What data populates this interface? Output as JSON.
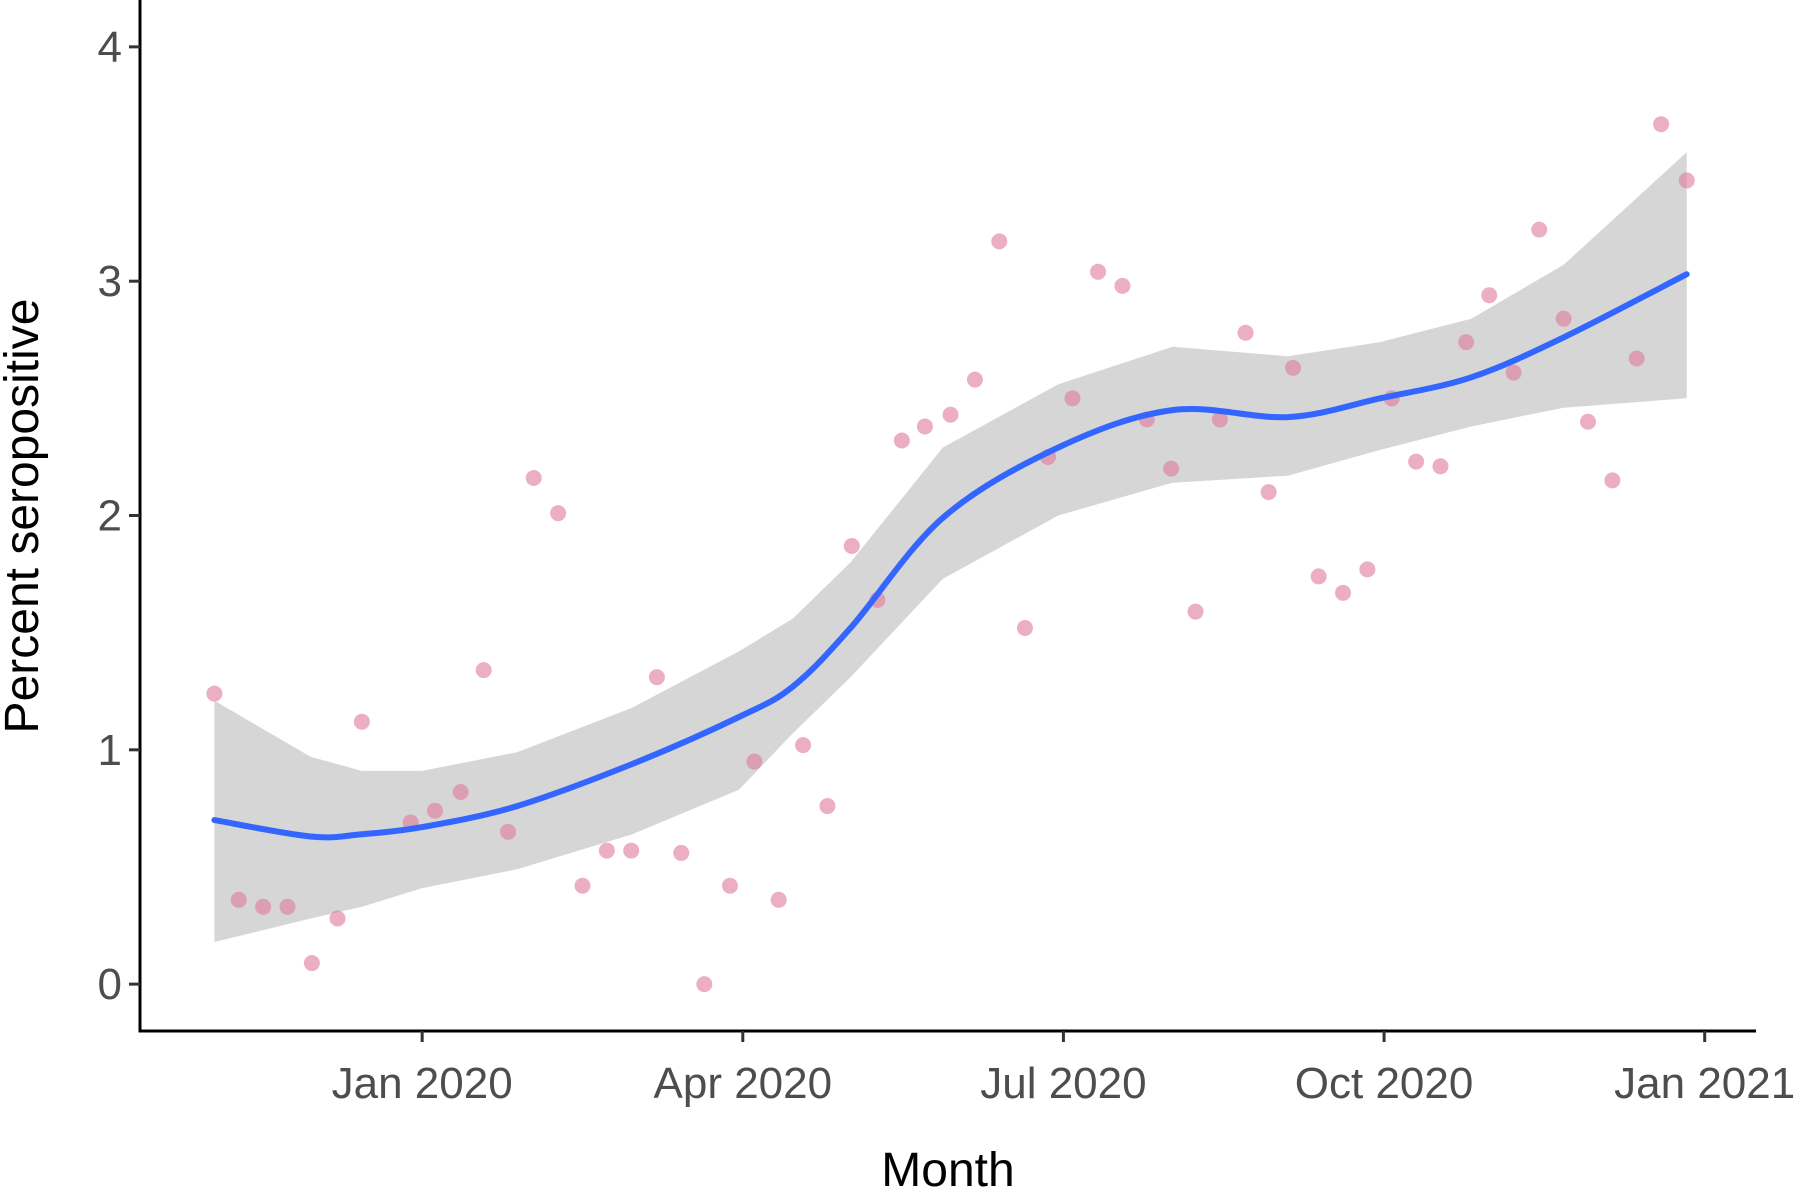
{
  "chart_data": {
    "type": "scatter",
    "x_label": "Month",
    "y_label": "Percent seropositive",
    "x": [
      2019.838,
      2019.857,
      2019.876,
      2019.895,
      2019.914,
      2019.934,
      2019.953,
      2019.991,
      2020.01,
      2020.03,
      2020.048,
      2020.067,
      2020.087,
      2020.106,
      2020.125,
      2020.144,
      2020.163,
      2020.183,
      2020.202,
      2020.22,
      2020.24,
      2020.259,
      2020.278,
      2020.297,
      2020.316,
      2020.335,
      2020.355,
      2020.374,
      2020.392,
      2020.412,
      2020.431,
      2020.45,
      2020.47,
      2020.488,
      2020.507,
      2020.527,
      2020.546,
      2020.565,
      2020.584,
      2020.603,
      2020.622,
      2020.642,
      2020.66,
      2020.679,
      2020.699,
      2020.718,
      2020.737,
      2020.756,
      2020.775,
      2020.794,
      2020.814,
      2020.832,
      2020.851,
      2020.871,
      2020.89,
      2020.909,
      2020.928,
      2020.947,
      2020.966,
      2020.986
    ],
    "values": [
      1.24,
      0.36,
      0.33,
      0.33,
      0.09,
      0.28,
      1.12,
      0.69,
      0.74,
      0.82,
      1.34,
      0.65,
      2.16,
      2.01,
      0.42,
      0.57,
      0.57,
      1.31,
      0.56,
      0.0,
      0.42,
      0.95,
      0.36,
      1.02,
      0.76,
      1.87,
      1.64,
      2.32,
      2.38,
      2.43,
      2.58,
      3.17,
      1.52,
      2.25,
      2.5,
      3.04,
      2.98,
      2.41,
      2.2,
      1.59,
      2.41,
      2.78,
      2.1,
      2.63,
      1.74,
      1.67,
      1.77,
      2.5,
      2.23,
      2.21,
      2.74,
      2.94,
      2.61,
      3.22,
      2.84,
      2.4,
      2.15,
      2.67,
      3.67,
      3.43
    ],
    "color": "#e07a9a",
    "smooth": {
      "x": [
        2019.838,
        2019.913,
        2019.953,
        2020.0,
        2020.074,
        2020.164,
        2020.247,
        2020.289,
        2020.334,
        2020.406,
        2020.496,
        2020.585,
        2020.675,
        2020.747,
        2020.818,
        2020.89,
        2020.986
      ],
      "values": [
        0.7,
        0.63,
        0.64,
        0.67,
        0.76,
        0.94,
        1.14,
        1.27,
        1.52,
        1.99,
        2.29,
        2.45,
        2.42,
        2.5,
        2.59,
        2.76,
        3.03
      ],
      "lower": [
        0.18,
        0.28,
        0.33,
        0.41,
        0.49,
        0.64,
        0.83,
        1.07,
        1.31,
        1.73,
        2.0,
        2.14,
        2.17,
        2.28,
        2.38,
        2.46,
        2.5
      ],
      "upper": [
        1.21,
        0.97,
        0.91,
        0.91,
        0.99,
        1.18,
        1.42,
        1.56,
        1.8,
        2.29,
        2.56,
        2.72,
        2.68,
        2.74,
        2.84,
        3.07,
        3.55
      ],
      "color": "#3366ff",
      "band_color": "#d6d6d6"
    },
    "xlim": [
      2019.78,
      2021.04
    ],
    "xticks": [
      {
        "value": 2020.0,
        "label": "Jan 2020"
      },
      {
        "value": 2020.25,
        "label": "Apr 2020"
      },
      {
        "value": 2020.5,
        "label": "Jul 2020"
      },
      {
        "value": 2020.75,
        "label": "Oct 2020"
      },
      {
        "value": 2021.0,
        "label": "Jan 2021"
      }
    ],
    "ylim": [
      -0.2,
      4.2
    ],
    "yticks": [
      0,
      1,
      2,
      3,
      4
    ],
    "grid": false
  }
}
